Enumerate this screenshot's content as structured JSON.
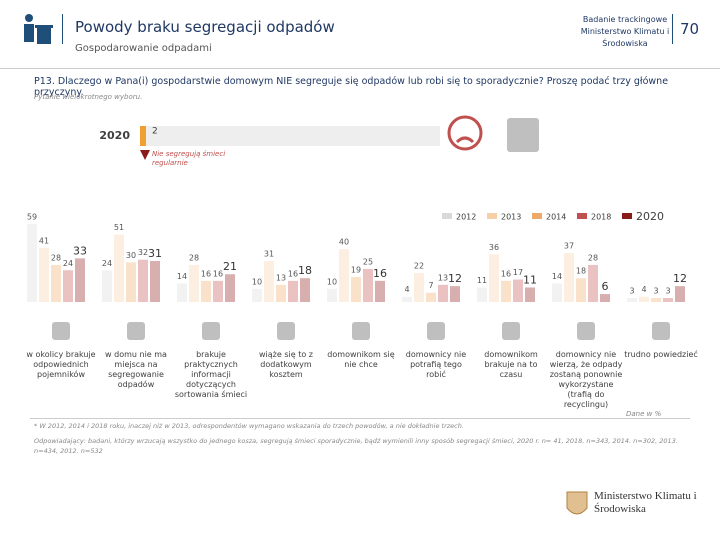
{
  "header": {
    "title": "Powody braku segregacji odpadów",
    "subtitle": "Gospodarowanie odpadami",
    "source": "Badanie trackingowe Ministerstwo Klimatu i Środowiska",
    "page": "70"
  },
  "question": "P13. Dlaczego w Pana(i) gospodarstwie domowym NIE segreguje się odpadów lub robi się to sporadycznie? Proszę podać trzy główne przyczyny.",
  "question_note": "Pytanie wielokrotnego wyboru.",
  "summary": {
    "year": "2020",
    "value": 2,
    "label": "Nie segregują śmieci regularnie"
  },
  "chart_data": {
    "type": "bar",
    "categories": [
      "w okolicy brakuje odpowiednich pojemników",
      "w domu nie ma miejsca na segregowanie odpadów",
      "brakuje praktycznych informacji dotyczących sortowania śmieci",
      "wiąże się to z dodatkowym kosztem",
      "domownikom się nie chce",
      "domownicy nie potrafią tego robić",
      "domownikom brakuje na to czasu",
      "domownicy nie wierzą, że odpady zostaną ponownie wykorzystane (trafią do recyclingu)",
      "trudno powiedzieć"
    ],
    "series": [
      {
        "name": "2012",
        "color": "#d9d9d9",
        "values": [
          59,
          24,
          14,
          10,
          10,
          4,
          11,
          14,
          3
        ]
      },
      {
        "name": "2013",
        "color": "#f6cfa6",
        "values": [
          41,
          51,
          28,
          31,
          40,
          22,
          36,
          37,
          4
        ]
      },
      {
        "name": "2014",
        "color": "#f0a868",
        "values": [
          28,
          30,
          16,
          13,
          19,
          7,
          16,
          18,
          3
        ]
      },
      {
        "name": "2018",
        "color": "#c0504d",
        "values": [
          24,
          32,
          16,
          16,
          25,
          13,
          17,
          28,
          3
        ]
      },
      {
        "name": "2020",
        "color": "#8b1a1a",
        "values": [
          33,
          31,
          21,
          18,
          16,
          12,
          11,
          6,
          12
        ]
      }
    ],
    "unit_note": "Dane w %"
  },
  "footnotes": [
    "* W 2012, 2014 i 2018 roku, inaczej niż w 2013, odrespondentów wymagano wskazania do trzech powodów, a nie dokładnie trzech.",
    "Odpowiadający: badani, którzy wrzucają wszystko do jednego kosza, segregują śmieci sporadycznie, bądź wymienili inny sposób segregacji śmieci, 2020 r. n= 41, 2018. n=343, 2014. n=302, 2013. n=434, 2012. n=532"
  ],
  "logo": "Ministerstwo Klimatu i Środowiska"
}
